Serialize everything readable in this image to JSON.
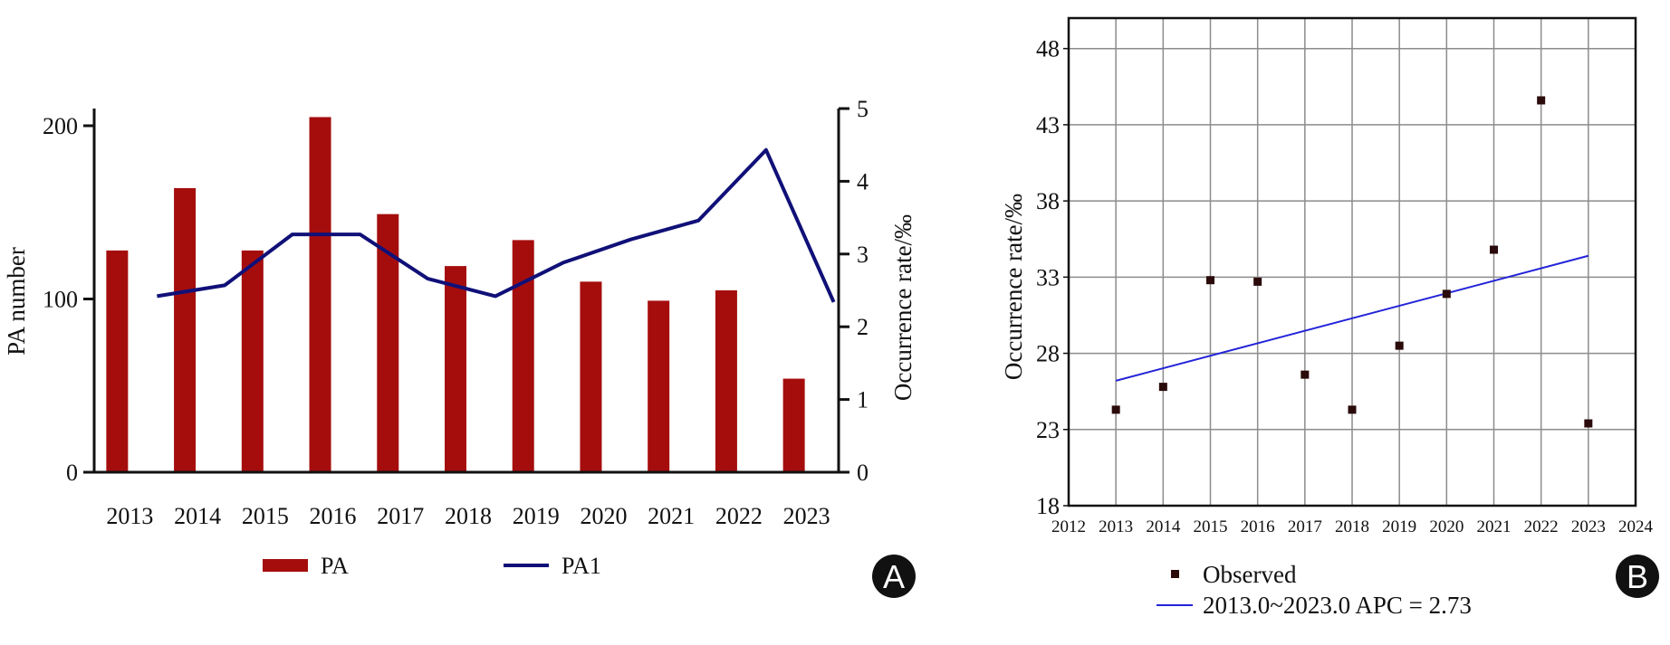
{
  "chart_data": [
    {
      "panel": "A",
      "type": "bar+line",
      "categories": [
        "2013",
        "2014",
        "2015",
        "2016",
        "2017",
        "2018",
        "2019",
        "2020",
        "2021",
        "2022",
        "2023"
      ],
      "series": [
        {
          "name": "PA",
          "type": "bar",
          "axis": "left",
          "color": "#a50d0d",
          "values": [
            128,
            164,
            128,
            205,
            149,
            119,
            134,
            110,
            99,
            105,
            54
          ]
        },
        {
          "name": "PA1",
          "type": "line",
          "axis": "right",
          "color": "#101078",
          "values": [
            2.42,
            2.57,
            3.27,
            3.27,
            2.66,
            2.42,
            2.88,
            3.2,
            3.46,
            4.43,
            2.34
          ]
        }
      ],
      "left_axis": {
        "label": "PA number",
        "ylim": [
          0,
          210
        ],
        "ticks": [
          "0",
          "100",
          "200"
        ],
        "tick_values": [
          0,
          100,
          200
        ]
      },
      "right_axis": {
        "label": "Occurrence rate/‰",
        "ylim": [
          0,
          5
        ],
        "ticks": [
          "0",
          "1",
          "2",
          "3",
          "4",
          "5"
        ],
        "tick_values": [
          0,
          1,
          2,
          3,
          4,
          5
        ]
      },
      "legend": [
        "PA",
        "PA1"
      ],
      "legend_position": "bottom",
      "badge": "A"
    },
    {
      "panel": "B",
      "type": "scatter+line",
      "x": [
        2013,
        2014,
        2015,
        2016,
        2017,
        2018,
        2019,
        2020,
        2021,
        2022,
        2023
      ],
      "observed": [
        24.3,
        25.8,
        32.8,
        32.7,
        26.6,
        24.3,
        28.5,
        31.9,
        34.8,
        44.6,
        23.4
      ],
      "fit": {
        "x": [
          2013,
          2023
        ],
        "y": [
          26.2,
          34.4
        ],
        "color": "#2323d8"
      },
      "xlim": [
        2012,
        2024
      ],
      "ylim": [
        18,
        50
      ],
      "xticks": [
        "2012",
        "2013",
        "2014",
        "2015",
        "2016",
        "2017",
        "2018",
        "2019",
        "2020",
        "2021",
        "2022",
        "2023",
        "2024"
      ],
      "xtick_values": [
        2012,
        2013,
        2014,
        2015,
        2016,
        2017,
        2018,
        2019,
        2020,
        2021,
        2022,
        2023,
        2024
      ],
      "yticks": [
        "18",
        "23",
        "28",
        "33",
        "38",
        "43",
        "48"
      ],
      "ytick_values": [
        18,
        23,
        28,
        33,
        38,
        43,
        48
      ],
      "ylabel": "Occurrence rate/‰",
      "grid": true,
      "legend": [
        "Observed",
        "2013.0~2023.0 APC = 2.73"
      ],
      "legend_position": "bottom",
      "badge": "B"
    }
  ]
}
